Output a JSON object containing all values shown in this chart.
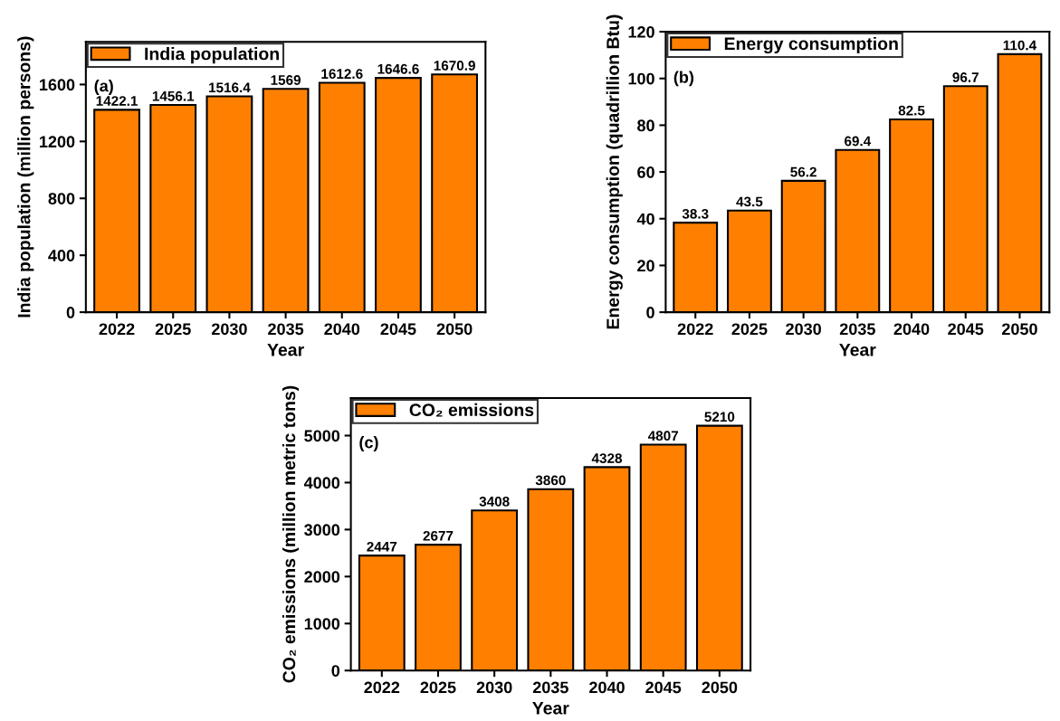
{
  "chart_data": [
    {
      "type": "bar",
      "categories": [
        "2022",
        "2025",
        "2030",
        "2035",
        "2040",
        "2045",
        "2050"
      ],
      "series": [
        {
          "name": "India population",
          "color": "#ff8000",
          "values": [
            1422.1,
            1456.1,
            1516.4,
            1569,
            1612.6,
            1646.6,
            1670.9
          ]
        }
      ],
      "xlabel": "Year",
      "ylabel": "India population (million persons)",
      "ylim": [
        0,
        1900
      ],
      "yticks": [
        0,
        400,
        800,
        1200,
        1600
      ],
      "data_labels": true,
      "legend": "top left",
      "grid": false,
      "annotations": [
        "(a)"
      ]
    },
    {
      "type": "bar",
      "categories": [
        "2022",
        "2025",
        "2030",
        "2035",
        "2040",
        "2045",
        "2050"
      ],
      "series": [
        {
          "name": "Energy consumption",
          "color": "#ff8000",
          "values": [
            38.3,
            43.5,
            56.2,
            69.4,
            82.5,
            96.7,
            110.4
          ]
        }
      ],
      "xlabel": "Year",
      "ylabel": "Energy consumption (quadrillion Btu)",
      "ylim": [
        0,
        120
      ],
      "yticks": [
        0,
        20,
        40,
        60,
        80,
        100,
        120
      ],
      "data_labels": true,
      "legend": "top left",
      "grid": false,
      "annotations": [
        "(b)"
      ]
    },
    {
      "type": "bar",
      "categories": [
        "2022",
        "2025",
        "2030",
        "2035",
        "2040",
        "2045",
        "2050"
      ],
      "series": [
        {
          "name": "CO₂ emissions",
          "color": "#ff8000",
          "values": [
            2447,
            2677,
            3408,
            3860,
            4328,
            4807,
            5210
          ]
        }
      ],
      "xlabel": "Year",
      "ylabel": "CO₂ emissions (million metric tons)",
      "ylim": [
        0,
        5800
      ],
      "yticks": [
        0,
        1000,
        2000,
        3000,
        4000,
        5000
      ],
      "data_labels": true,
      "legend": "top left",
      "grid": false,
      "annotations": [
        "(c)"
      ]
    }
  ]
}
